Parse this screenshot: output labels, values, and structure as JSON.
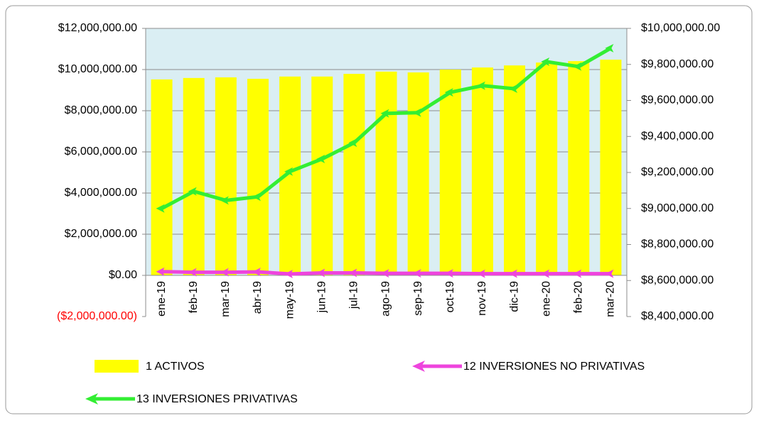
{
  "chart_data": {
    "type": "bar-line",
    "categories": [
      "ene-19",
      "feb-19",
      "mar-19",
      "abr-19",
      "may-19",
      "jun-19",
      "jul-19",
      "ago-19",
      "sep-19",
      "oct-19",
      "nov-19",
      "dic-19",
      "ene-20",
      "feb-20",
      "mar-20"
    ],
    "series": [
      {
        "name": "1 ACTIVOS",
        "type": "bar",
        "color": "#ffff00",
        "axis": "y",
        "values": [
          9520000,
          9590000,
          9620000,
          9550000,
          9660000,
          9660000,
          9790000,
          9900000,
          9860000,
          10000000,
          10100000,
          10200000,
          10340000,
          10410000,
          10480000
        ]
      },
      {
        "name": "12 INVERSIONES NO PRIVATIVAS",
        "type": "line",
        "color": "#ee44dd",
        "axis": "y",
        "values": [
          180000,
          150000,
          150000,
          170000,
          70000,
          120000,
          120000,
          100000,
          100000,
          100000,
          80000,
          80000,
          80000,
          80000,
          80000
        ]
      },
      {
        "name": "13 INVERSIONES PRIVATIVAS",
        "type": "line",
        "color": "#33ee33",
        "axis": "y2",
        "values": [
          9000000,
          9095000,
          9045000,
          9065000,
          9205000,
          9275000,
          9365000,
          9528000,
          9532000,
          9645000,
          9682000,
          9665000,
          9815000,
          9788000,
          9890000
        ]
      }
    ],
    "ylim": [
      -2000000,
      12000000
    ],
    "yticks": [
      {
        "value": -2000000,
        "label": "($2,000,000.00)"
      },
      {
        "value": 0,
        "label": "$0.00"
      },
      {
        "value": 2000000,
        "label": "$2,000,000.00"
      },
      {
        "value": 4000000,
        "label": "$4,000,000.00"
      },
      {
        "value": 6000000,
        "label": "$6,000,000.00"
      },
      {
        "value": 8000000,
        "label": "$8,000,000.00"
      },
      {
        "value": 10000000,
        "label": "$10,000,000.00"
      },
      {
        "value": 12000000,
        "label": "$12,000,000.00"
      }
    ],
    "y2lim": [
      8400000,
      10000000
    ],
    "y2ticks": [
      {
        "value": 8400000,
        "label": "$8,400,000.00"
      },
      {
        "value": 8600000,
        "label": "$8,600,000.00"
      },
      {
        "value": 8800000,
        "label": "$8,800,000.00"
      },
      {
        "value": 9000000,
        "label": "$9,000,000.00"
      },
      {
        "value": 9200000,
        "label": "$9,200,000.00"
      },
      {
        "value": 9400000,
        "label": "$9,400,000.00"
      },
      {
        "value": 9600000,
        "label": "$9,600,000.00"
      },
      {
        "value": 9800000,
        "label": "$9,800,000.00"
      },
      {
        "value": 10000000,
        "label": "$10,000,000.00"
      }
    ],
    "negative_tick_color": "#ff0000",
    "plot_background": "#daeef3",
    "grid": true,
    "legend": "bottom"
  }
}
